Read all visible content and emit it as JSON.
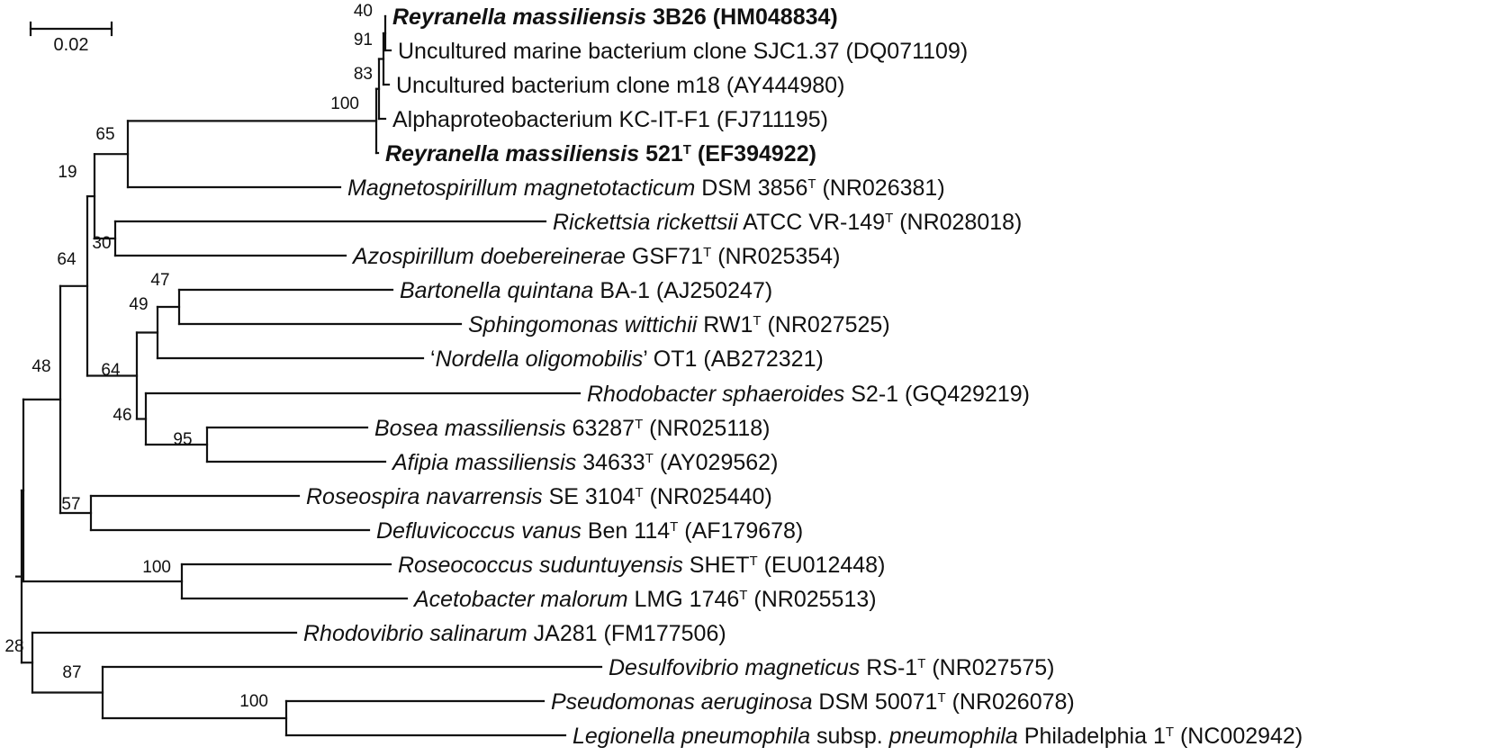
{
  "scale_bar": {
    "label": "0.02"
  },
  "leaves": [
    {
      "id": "reyranella-3b26",
      "bold": true,
      "parts": [
        [
          "Reyranella massiliensis",
          "i"
        ],
        [
          " 3B26 (HM048834)",
          "n"
        ]
      ]
    },
    {
      "id": "sjc137",
      "bold": false,
      "parts": [
        [
          "Uncultured marine bacterium clone SJC1.37 (DQ071109)",
          "n"
        ]
      ]
    },
    {
      "id": "m18",
      "bold": false,
      "parts": [
        [
          "Uncultured bacterium clone m18 (AY444980)",
          "n"
        ]
      ]
    },
    {
      "id": "kc-it-f1",
      "bold": false,
      "parts": [
        [
          "Alphaproteobacterium KC-IT-F1 (FJ711195)",
          "n"
        ]
      ]
    },
    {
      "id": "reyranella-521",
      "bold": true,
      "parts": [
        [
          "Reyranella massiliensis",
          "i"
        ],
        [
          " 521",
          "n"
        ],
        [
          "T",
          "s"
        ],
        [
          " (EF394922)",
          "n"
        ]
      ]
    },
    {
      "id": "magnetospirillum",
      "bold": false,
      "parts": [
        [
          "Magnetospirillum magnetotacticum",
          "i"
        ],
        [
          " DSM 3856",
          "n"
        ],
        [
          "T",
          "s"
        ],
        [
          " (NR026381)",
          "n"
        ]
      ]
    },
    {
      "id": "rickettsia",
      "bold": false,
      "parts": [
        [
          "Rickettsia rickettsii",
          "i"
        ],
        [
          " ATCC VR-149",
          "n"
        ],
        [
          "T",
          "s"
        ],
        [
          " (NR028018)",
          "n"
        ]
      ]
    },
    {
      "id": "azospirillum",
      "bold": false,
      "parts": [
        [
          "Azospirillum doebereinerae",
          "i"
        ],
        [
          " GSF71",
          "n"
        ],
        [
          "T",
          "s"
        ],
        [
          " (NR025354)",
          "n"
        ]
      ]
    },
    {
      "id": "bartonella",
      "bold": false,
      "parts": [
        [
          "Bartonella quintana",
          "i"
        ],
        [
          " BA-1 (AJ250247)",
          "n"
        ]
      ]
    },
    {
      "id": "sphingomonas",
      "bold": false,
      "parts": [
        [
          "Sphingomonas wittichii",
          "i"
        ],
        [
          " RW1",
          "n"
        ],
        [
          "T",
          "s"
        ],
        [
          " (NR027525)",
          "n"
        ]
      ]
    },
    {
      "id": "nordella",
      "bold": false,
      "parts": [
        [
          "‘",
          "n"
        ],
        [
          "Nordella oligomobilis",
          "i"
        ],
        [
          "’ OT1 (AB272321)",
          "n"
        ]
      ]
    },
    {
      "id": "rhodobacter",
      "bold": false,
      "parts": [
        [
          "Rhodobacter sphaeroides",
          "i"
        ],
        [
          " S2-1 (GQ429219)",
          "n"
        ]
      ]
    },
    {
      "id": "bosea",
      "bold": false,
      "parts": [
        [
          "Bosea massiliensis",
          "i"
        ],
        [
          " 63287",
          "n"
        ],
        [
          "T",
          "s"
        ],
        [
          " (NR025118)",
          "n"
        ]
      ]
    },
    {
      "id": "afipia",
      "bold": false,
      "parts": [
        [
          "Afipia massiliensis",
          "i"
        ],
        [
          " 34633",
          "n"
        ],
        [
          "T",
          "s"
        ],
        [
          " (AY029562)",
          "n"
        ]
      ]
    },
    {
      "id": "roseospira",
      "bold": false,
      "parts": [
        [
          "Roseospira navarrensis",
          "i"
        ],
        [
          " SE 3104",
          "n"
        ],
        [
          "T",
          "s"
        ],
        [
          " (NR025440)",
          "n"
        ]
      ]
    },
    {
      "id": "defluvicoccus",
      "bold": false,
      "parts": [
        [
          "Defluvicoccus vanus",
          "i"
        ],
        [
          " Ben 114",
          "n"
        ],
        [
          "T",
          "s"
        ],
        [
          " (AF179678)",
          "n"
        ]
      ]
    },
    {
      "id": "roseococcus",
      "bold": false,
      "parts": [
        [
          "Roseococcus suduntuyensis",
          "i"
        ],
        [
          " SHET",
          "n"
        ],
        [
          "T",
          "s"
        ],
        [
          " (EU012448)",
          "n"
        ]
      ]
    },
    {
      "id": "acetobacter",
      "bold": false,
      "parts": [
        [
          "Acetobacter malorum",
          "i"
        ],
        [
          " LMG 1746",
          "n"
        ],
        [
          "T",
          "s"
        ],
        [
          " (NR025513)",
          "n"
        ]
      ]
    },
    {
      "id": "rhodovibrio",
      "bold": false,
      "parts": [
        [
          "Rhodovibrio salinarum",
          "i"
        ],
        [
          " JA281 (FM177506)",
          "n"
        ]
      ]
    },
    {
      "id": "desulfovibrio",
      "bold": false,
      "parts": [
        [
          "Desulfovibrio magneticus",
          "i"
        ],
        [
          " RS-1",
          "n"
        ],
        [
          "T",
          "s"
        ],
        [
          " (NR027575)",
          "n"
        ]
      ]
    },
    {
      "id": "pseudomonas",
      "bold": false,
      "parts": [
        [
          "Pseudomonas aeruginosa",
          "i"
        ],
        [
          " DSM 50071",
          "n"
        ],
        [
          "T",
          "s"
        ],
        [
          " (NR026078)",
          "n"
        ]
      ]
    },
    {
      "id": "legionella",
      "bold": false,
      "parts": [
        [
          "Legionella pneumophila",
          "i"
        ],
        [
          " subsp. ",
          "n"
        ],
        [
          "pneumophila",
          "i"
        ],
        [
          " Philadelphia 1",
          "n"
        ],
        [
          "T",
          "s"
        ],
        [
          " (NC002942)",
          "n"
        ]
      ]
    }
  ],
  "bootstrap": [
    "40",
    "91",
    "83",
    "100",
    "65",
    "19",
    "30",
    "64",
    "47",
    "49",
    "64",
    "46",
    "95",
    "57",
    "48",
    "100",
    "28",
    "87",
    "100"
  ]
}
